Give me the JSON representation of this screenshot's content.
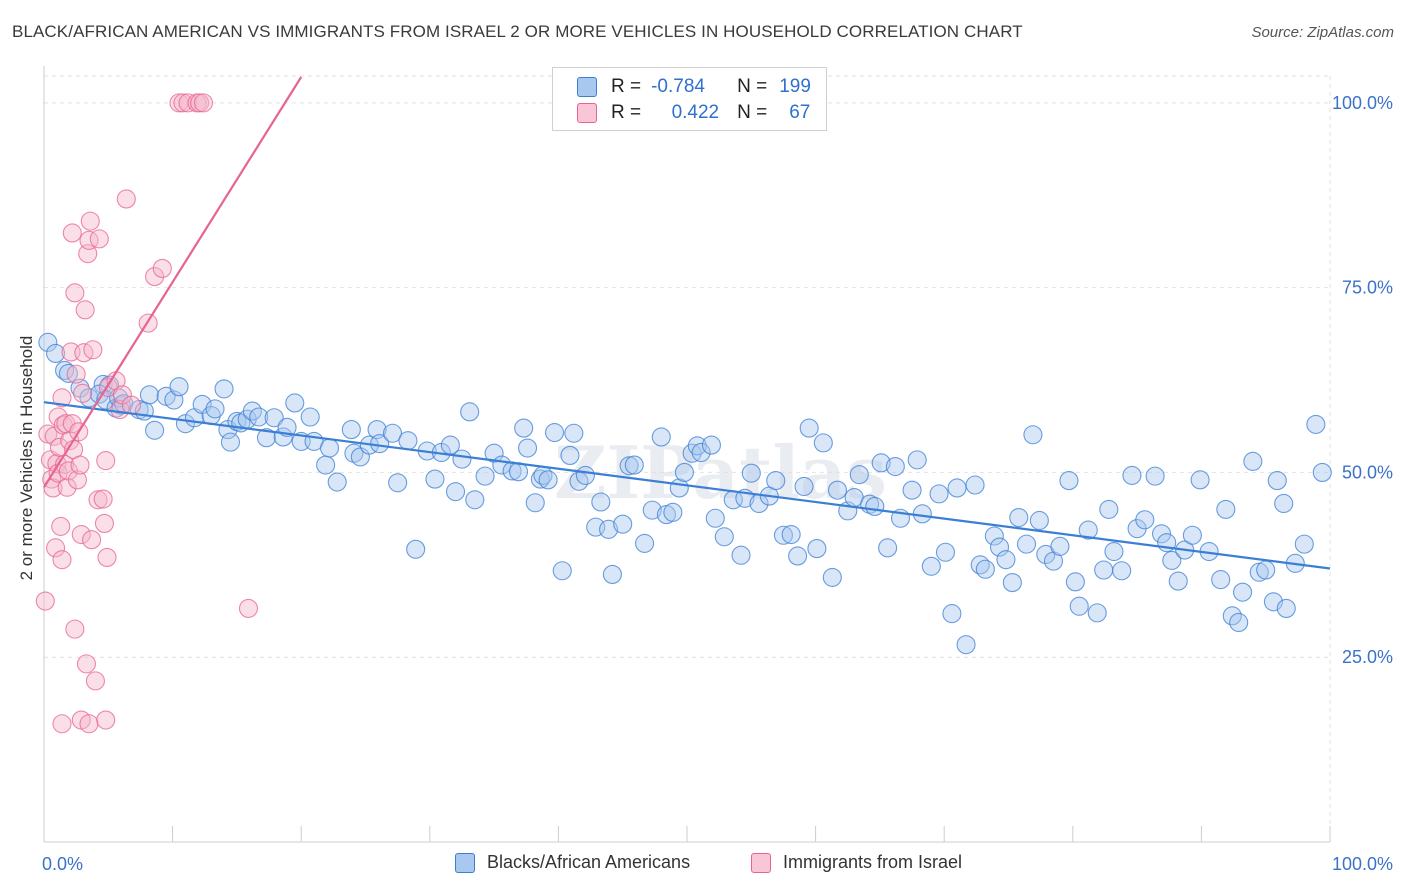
{
  "title": "BLACK/AFRICAN AMERICAN VS IMMIGRANTS FROM ISRAEL 2 OR MORE VEHICLES IN HOUSEHOLD CORRELATION CHART",
  "source": "Source: ZipAtlas.com",
  "watermark": "ZIPatlas",
  "legend": {
    "rows": [
      {
        "r_label": "R =",
        "r_value": "-0.784",
        "n_label": "N =",
        "n_value": "199"
      },
      {
        "r_label": "R =",
        "r_value": "0.422",
        "n_label": "N =",
        "n_value": "67"
      }
    ]
  },
  "bottom_legend": {
    "blue": "Blacks/African Americans",
    "pink": "Immigrants from Israel"
  },
  "colors": {
    "blue": "#3b7fd4",
    "blue_fill": "#a9c8f0",
    "pink": "#e8638f",
    "pink_fill": "#f5b8cb",
    "axis_label": "#3b72c8",
    "grid": "#e2e2e2"
  },
  "chart_data": {
    "type": "scatter",
    "xlabel": "",
    "ylabel": "2 or more Vehicles in Household",
    "xlim": [
      0,
      100
    ],
    "ylim": [
      0,
      103.5
    ],
    "x_tick_labels": [
      "0.0%",
      "100.0%"
    ],
    "y_ticks": [
      25,
      50,
      75,
      100
    ],
    "y_tick_labels": [
      "25.0%",
      "50.0%",
      "75.0%",
      "100.0%"
    ],
    "grid": true,
    "legend_position": "top-center",
    "series": [
      {
        "name": "Blacks/African Americans",
        "color": "#3b7fd4",
        "trend": {
          "x": [
            0,
            100
          ],
          "y": [
            59.5,
            37.0
          ]
        },
        "points": [
          [
            0.3,
            67.6
          ],
          [
            0.9,
            66.1
          ],
          [
            1.6,
            63.8
          ],
          [
            1.9,
            63.4
          ],
          [
            2.8,
            61.4
          ],
          [
            3.5,
            60.1
          ],
          [
            4.6,
            61.9
          ],
          [
            5.1,
            61.8
          ],
          [
            4.3,
            60.6
          ],
          [
            4.8,
            59.8
          ],
          [
            5.6,
            58.7
          ],
          [
            6.0,
            59.1
          ],
          [
            5.8,
            60.1
          ],
          [
            6.2,
            59.3
          ],
          [
            7.4,
            58.5
          ],
          [
            7.8,
            58.3
          ],
          [
            8.2,
            60.5
          ],
          [
            8.6,
            55.7
          ],
          [
            9.5,
            60.3
          ],
          [
            10.1,
            59.8
          ],
          [
            10.5,
            61.6
          ],
          [
            11.0,
            56.6
          ],
          [
            11.7,
            57.4
          ],
          [
            12.3,
            59.2
          ],
          [
            13.0,
            57.7
          ],
          [
            13.3,
            58.6
          ],
          [
            14.0,
            61.3
          ],
          [
            14.3,
            55.8
          ],
          [
            14.5,
            54.1
          ],
          [
            15.0,
            56.9
          ],
          [
            15.3,
            56.7
          ],
          [
            15.8,
            57.2
          ],
          [
            16.2,
            58.3
          ],
          [
            16.7,
            57.5
          ],
          [
            17.3,
            54.7
          ],
          [
            17.9,
            57.4
          ],
          [
            18.6,
            54.8
          ],
          [
            18.9,
            56.1
          ],
          [
            19.5,
            59.4
          ],
          [
            20.0,
            54.2
          ],
          [
            20.7,
            57.5
          ],
          [
            21.0,
            54.2
          ],
          [
            21.9,
            51.0
          ],
          [
            22.2,
            53.3
          ],
          [
            22.8,
            48.7
          ],
          [
            23.9,
            55.8
          ],
          [
            24.1,
            52.6
          ],
          [
            24.6,
            52.1
          ],
          [
            25.3,
            53.7
          ],
          [
            25.9,
            55.8
          ],
          [
            26.1,
            53.9
          ],
          [
            27.1,
            55.3
          ],
          [
            27.5,
            48.6
          ],
          [
            28.3,
            54.3
          ],
          [
            28.9,
            39.6
          ],
          [
            29.8,
            52.9
          ],
          [
            30.4,
            49.1
          ],
          [
            30.9,
            52.7
          ],
          [
            31.6,
            53.7
          ],
          [
            32.0,
            47.4
          ],
          [
            32.5,
            51.8
          ],
          [
            33.1,
            58.2
          ],
          [
            33.5,
            46.3
          ],
          [
            34.3,
            49.5
          ],
          [
            35.0,
            52.6
          ],
          [
            35.6,
            51.0
          ],
          [
            36.4,
            50.2
          ],
          [
            36.9,
            50.1
          ],
          [
            37.3,
            56.0
          ],
          [
            37.6,
            53.3
          ],
          [
            38.2,
            45.9
          ],
          [
            38.6,
            49.1
          ],
          [
            38.8,
            49.6
          ],
          [
            39.2,
            49.0
          ],
          [
            39.7,
            55.4
          ],
          [
            40.3,
            36.7
          ],
          [
            40.9,
            52.3
          ],
          [
            41.2,
            55.3
          ],
          [
            41.6,
            48.8
          ],
          [
            42.1,
            49.6
          ],
          [
            42.9,
            42.6
          ],
          [
            43.3,
            46.0
          ],
          [
            43.9,
            42.3
          ],
          [
            44.2,
            36.2
          ],
          [
            45.0,
            43.0
          ],
          [
            45.5,
            50.9
          ],
          [
            45.9,
            51.0
          ],
          [
            46.7,
            40.4
          ],
          [
            47.3,
            44.9
          ],
          [
            48.0,
            54.8
          ],
          [
            48.4,
            44.3
          ],
          [
            48.9,
            44.6
          ],
          [
            49.4,
            47.9
          ],
          [
            49.8,
            50.0
          ],
          [
            50.4,
            52.6
          ],
          [
            50.8,
            53.6
          ],
          [
            51.1,
            52.7
          ],
          [
            51.9,
            53.7
          ],
          [
            52.2,
            43.8
          ],
          [
            52.9,
            41.3
          ],
          [
            53.6,
            46.3
          ],
          [
            54.2,
            38.8
          ],
          [
            54.5,
            46.5
          ],
          [
            55.0,
            49.9
          ],
          [
            55.6,
            45.8
          ],
          [
            56.4,
            46.8
          ],
          [
            56.9,
            48.9
          ],
          [
            57.5,
            41.5
          ],
          [
            58.1,
            41.6
          ],
          [
            58.6,
            38.7
          ],
          [
            59.1,
            48.1
          ],
          [
            59.5,
            56.0
          ],
          [
            60.1,
            39.7
          ],
          [
            60.6,
            54.0
          ],
          [
            61.3,
            35.8
          ],
          [
            61.7,
            47.6
          ],
          [
            62.5,
            44.8
          ],
          [
            63.0,
            46.6
          ],
          [
            63.4,
            49.7
          ],
          [
            64.2,
            45.7
          ],
          [
            64.6,
            45.4
          ],
          [
            65.1,
            51.3
          ],
          [
            65.6,
            39.8
          ],
          [
            66.2,
            50.8
          ],
          [
            66.6,
            43.8
          ],
          [
            67.5,
            47.6
          ],
          [
            67.9,
            51.7
          ],
          [
            68.3,
            44.4
          ],
          [
            69.0,
            37.3
          ],
          [
            69.6,
            47.1
          ],
          [
            70.1,
            39.2
          ],
          [
            70.6,
            30.9
          ],
          [
            71.0,
            47.9
          ],
          [
            71.7,
            26.7
          ],
          [
            72.4,
            48.3
          ],
          [
            72.8,
            37.5
          ],
          [
            73.2,
            36.9
          ],
          [
            73.9,
            41.4
          ],
          [
            74.3,
            39.9
          ],
          [
            74.8,
            38.2
          ],
          [
            75.3,
            35.1
          ],
          [
            75.8,
            43.9
          ],
          [
            76.4,
            40.3
          ],
          [
            76.9,
            55.1
          ],
          [
            77.4,
            43.5
          ],
          [
            77.9,
            38.9
          ],
          [
            78.5,
            38.0
          ],
          [
            79.0,
            40.0
          ],
          [
            79.7,
            48.9
          ],
          [
            80.2,
            35.2
          ],
          [
            80.5,
            31.9
          ],
          [
            81.2,
            42.2
          ],
          [
            81.9,
            31.0
          ],
          [
            82.4,
            36.8
          ],
          [
            82.8,
            45.0
          ],
          [
            83.2,
            39.3
          ],
          [
            83.8,
            36.7
          ],
          [
            84.6,
            49.6
          ],
          [
            85.0,
            42.4
          ],
          [
            85.6,
            43.6
          ],
          [
            86.4,
            49.5
          ],
          [
            86.9,
            41.7
          ],
          [
            87.3,
            40.5
          ],
          [
            87.7,
            38.1
          ],
          [
            88.2,
            35.3
          ],
          [
            88.7,
            39.5
          ],
          [
            89.3,
            41.5
          ],
          [
            89.9,
            49.0
          ],
          [
            90.6,
            39.3
          ],
          [
            91.5,
            35.5
          ],
          [
            91.9,
            45.0
          ],
          [
            92.4,
            30.6
          ],
          [
            92.9,
            29.7
          ],
          [
            93.2,
            33.8
          ],
          [
            94.0,
            51.5
          ],
          [
            94.5,
            36.5
          ],
          [
            95.0,
            36.8
          ],
          [
            95.6,
            32.5
          ],
          [
            95.9,
            48.9
          ],
          [
            96.4,
            45.8
          ],
          [
            96.6,
            31.6
          ],
          [
            97.3,
            37.7
          ],
          [
            98.0,
            40.3
          ],
          [
            98.9,
            56.5
          ],
          [
            99.4,
            50.0
          ]
        ]
      },
      {
        "name": "Immigrants from Israel",
        "color": "#e8638f",
        "trend": {
          "x": [
            0,
            20
          ],
          "y": [
            48.0,
            103.5
          ]
        },
        "points": [
          [
            0.1,
            32.6
          ],
          [
            0.3,
            55.2
          ],
          [
            0.5,
            51.7
          ],
          [
            0.6,
            49.1
          ],
          [
            0.7,
            47.9
          ],
          [
            0.8,
            54.9
          ],
          [
            0.9,
            39.8
          ],
          [
            1.0,
            51.2
          ],
          [
            1.1,
            57.5
          ],
          [
            1.1,
            49.9
          ],
          [
            1.2,
            53.4
          ],
          [
            1.3,
            42.7
          ],
          [
            1.4,
            60.1
          ],
          [
            1.4,
            38.2
          ],
          [
            1.5,
            56.4
          ],
          [
            1.6,
            51.1
          ],
          [
            1.7,
            56.6
          ],
          [
            1.8,
            48.0
          ],
          [
            1.9,
            50.2
          ],
          [
            2.0,
            54.3
          ],
          [
            2.1,
            66.3
          ],
          [
            2.2,
            82.4
          ],
          [
            2.2,
            56.6
          ],
          [
            2.3,
            53.1
          ],
          [
            2.4,
            74.3
          ],
          [
            2.4,
            28.8
          ],
          [
            2.5,
            63.3
          ],
          [
            2.6,
            49.0
          ],
          [
            2.7,
            55.5
          ],
          [
            2.8,
            51.0
          ],
          [
            2.9,
            41.6
          ],
          [
            3.0,
            60.7
          ],
          [
            3.1,
            66.2
          ],
          [
            3.2,
            72.0
          ],
          [
            3.3,
            24.1
          ],
          [
            3.4,
            79.6
          ],
          [
            3.5,
            81.4
          ],
          [
            3.6,
            84.0
          ],
          [
            3.7,
            40.9
          ],
          [
            3.8,
            66.6
          ],
          [
            4.0,
            21.8
          ],
          [
            4.2,
            46.3
          ],
          [
            4.3,
            81.6
          ],
          [
            4.6,
            46.4
          ],
          [
            4.7,
            43.1
          ],
          [
            4.8,
            51.6
          ],
          [
            4.9,
            38.5
          ],
          [
            5.0,
            61.5
          ],
          [
            5.6,
            62.4
          ],
          [
            5.9,
            58.5
          ],
          [
            6.1,
            60.5
          ],
          [
            6.4,
            87.0
          ],
          [
            6.8,
            59.1
          ],
          [
            8.1,
            70.2
          ],
          [
            8.6,
            76.5
          ],
          [
            9.2,
            77.6
          ],
          [
            10.5,
            100.0
          ],
          [
            10.8,
            100.0
          ],
          [
            11.2,
            100.0
          ],
          [
            11.9,
            100.0
          ],
          [
            12.1,
            100.0
          ],
          [
            12.4,
            100.0
          ],
          [
            1.4,
            16.0
          ],
          [
            2.9,
            16.5
          ],
          [
            3.5,
            16.0
          ],
          [
            4.8,
            16.5
          ],
          [
            15.9,
            31.6
          ]
        ]
      }
    ]
  }
}
